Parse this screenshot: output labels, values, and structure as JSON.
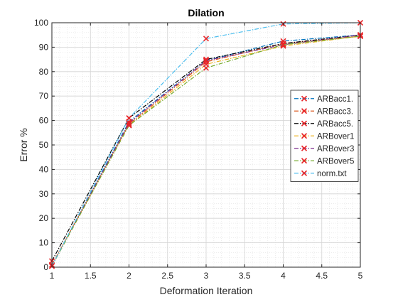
{
  "chart_data": {
    "type": "line",
    "title": "Dilation",
    "xlabel": "Deformation Iteration",
    "ylabel": "Error %",
    "xlim": [
      1,
      5
    ],
    "ylim": [
      0,
      100
    ],
    "xticks": [
      1,
      1.5,
      2,
      2.5,
      3,
      3.5,
      4,
      4.5,
      5
    ],
    "yticks": [
      0,
      10,
      20,
      30,
      40,
      50,
      60,
      70,
      80,
      90,
      100
    ],
    "grid": true,
    "minor_grid": true,
    "legend_position": "right",
    "marker_color": "#e8262a",
    "x": [
      1,
      2,
      3,
      4,
      5
    ],
    "series": [
      {
        "name": "ARBacc1.",
        "color": "#0072bd",
        "values": [
          0.5,
          59.5,
          84.5,
          92.5,
          95
        ]
      },
      {
        "name": "ARBacc3.",
        "color": "#d95319",
        "values": [
          1.0,
          58.5,
          84.0,
          91.5,
          94.5
        ]
      },
      {
        "name": "ARBacc5.",
        "color": "#000000",
        "values": [
          2.5,
          61.0,
          85.0,
          91.5,
          95
        ]
      },
      {
        "name": "ARBover1",
        "color": "#edb120",
        "values": [
          0.5,
          58.0,
          83.0,
          90.5,
          94.5
        ]
      },
      {
        "name": "ARBover3",
        "color": "#7e2f8e",
        "values": [
          0.5,
          59.0,
          84.5,
          91.0,
          95
        ]
      },
      {
        "name": "ARBover5",
        "color": "#77ac30",
        "values": [
          0.5,
          58.0,
          81.5,
          91.0,
          94.5
        ]
      },
      {
        "name": "norm.txt",
        "color": "#4dbeee",
        "values": [
          0.5,
          61.0,
          93.5,
          99.5,
          100
        ]
      }
    ]
  }
}
